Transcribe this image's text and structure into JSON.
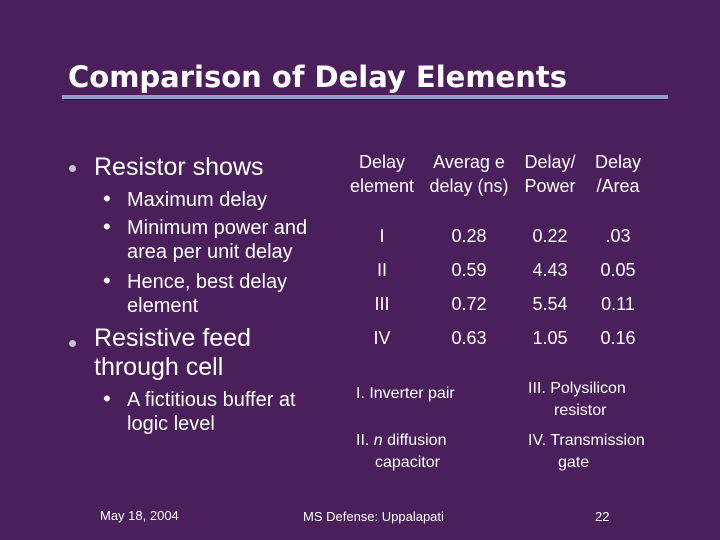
{
  "slide": {
    "title": "Comparison of Delay Elements",
    "bullets": [
      {
        "text": "Resistor shows",
        "subitems": [
          "Maximum delay",
          "Minimum power and area per unit delay",
          "Hence, best delay element"
        ]
      },
      {
        "text": "Resistive feed through cell",
        "subitems": [
          "A fictitious buffer at logic level"
        ]
      }
    ],
    "table": {
      "headers": [
        "Delay element",
        "Averag e delay (ns)",
        "Delay/ Power",
        "Delay /Area"
      ],
      "rows": [
        [
          "I",
          "0.28",
          "0.22",
          ".03"
        ],
        [
          "II",
          "0.59",
          "4.43",
          "0.05"
        ],
        [
          "III",
          "0.72",
          "5.54",
          "0.11"
        ],
        [
          "IV",
          "0.63",
          "1.05",
          "0.16"
        ]
      ]
    },
    "notes": {
      "inverter": "I. Inverter pair",
      "diffusion_prefix": "II.",
      "diffusion_italic": "n",
      "diffusion_rest": "diffusion",
      "diffusion_line2": "capacitor",
      "polysilicon": "III. Polysilicon",
      "polysilicon_line2": "resistor",
      "transmission": "IV. Transmission",
      "transmission_line2": "gate"
    },
    "footer": {
      "date": "May 18, 2004",
      "center": "MS Defense: Uppalapati",
      "page": "22"
    }
  },
  "colors": {
    "background": "#4a1f5c",
    "title_rule": "#8e9fc9",
    "text": "#ffffff"
  }
}
